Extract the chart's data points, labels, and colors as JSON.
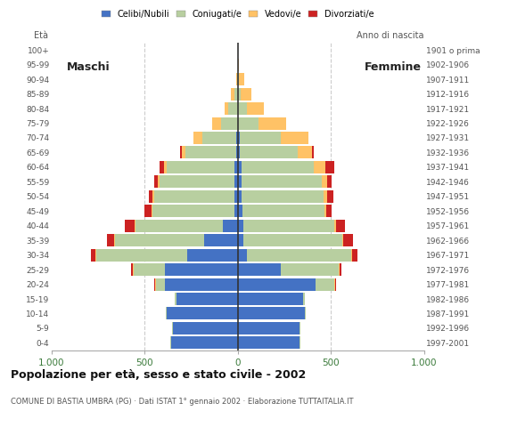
{
  "age_groups": [
    "0-4",
    "5-9",
    "10-14",
    "15-19",
    "20-24",
    "25-29",
    "30-34",
    "35-39",
    "40-44",
    "45-49",
    "50-54",
    "55-59",
    "60-64",
    "65-69",
    "70-74",
    "75-79",
    "80-84",
    "85-89",
    "90-94",
    "95-99",
    "100+"
  ],
  "birth_years": [
    "1997-2001",
    "1992-1996",
    "1987-1991",
    "1982-1986",
    "1977-1981",
    "1972-1976",
    "1967-1971",
    "1962-1966",
    "1957-1961",
    "1952-1956",
    "1947-1951",
    "1942-1946",
    "1937-1941",
    "1932-1936",
    "1927-1931",
    "1922-1926",
    "1917-1921",
    "1912-1916",
    "1907-1911",
    "1902-1906",
    "1901 o prima"
  ],
  "males": {
    "celibi": [
      360,
      350,
      380,
      330,
      390,
      390,
      270,
      180,
      80,
      20,
      20,
      20,
      20,
      10,
      10,
      0,
      0,
      0,
      0,
      0,
      0
    ],
    "coniugati": [
      5,
      5,
      5,
      10,
      50,
      170,
      490,
      480,
      470,
      440,
      430,
      400,
      360,
      270,
      180,
      90,
      50,
      20,
      5,
      0,
      0
    ],
    "vedovi": [
      0,
      0,
      0,
      0,
      5,
      5,
      5,
      5,
      5,
      5,
      10,
      10,
      15,
      20,
      50,
      50,
      20,
      15,
      5,
      0,
      0
    ],
    "divorziati": [
      0,
      0,
      0,
      0,
      5,
      10,
      25,
      40,
      50,
      35,
      20,
      20,
      25,
      10,
      0,
      0,
      0,
      0,
      0,
      0,
      0
    ]
  },
  "females": {
    "nubili": [
      330,
      330,
      360,
      350,
      420,
      230,
      50,
      30,
      30,
      25,
      20,
      20,
      20,
      10,
      10,
      0,
      0,
      0,
      0,
      0,
      0
    ],
    "coniugate": [
      5,
      5,
      5,
      10,
      100,
      310,
      560,
      530,
      490,
      440,
      440,
      430,
      390,
      310,
      220,
      110,
      50,
      15,
      5,
      0,
      0
    ],
    "vedove": [
      0,
      0,
      0,
      0,
      5,
      5,
      5,
      5,
      10,
      10,
      20,
      30,
      60,
      80,
      150,
      150,
      90,
      60,
      30,
      5,
      0
    ],
    "divorziate": [
      0,
      0,
      0,
      0,
      5,
      10,
      30,
      55,
      45,
      30,
      35,
      25,
      50,
      10,
      0,
      0,
      0,
      0,
      0,
      0,
      0
    ]
  },
  "colors": {
    "celibi": "#4472c4",
    "coniugati": "#b8cfa0",
    "vedovi": "#ffc266",
    "divorziati": "#cc2222"
  },
  "legend_labels": [
    "Celibi/Nubili",
    "Coniugati/e",
    "Vedovi/e",
    "Divorziati/e"
  ],
  "title": "Popolazione per età, sesso e stato civile - 2002",
  "subtitle": "COMUNE DI BASTIA UMBRA (PG) · Dati ISTAT 1° gennaio 2002 · Elaborazione TUTTAITALIA.IT",
  "xlim": 1000,
  "background_color": "#ffffff",
  "grid_color": "#cccccc",
  "bar_height": 0.85
}
